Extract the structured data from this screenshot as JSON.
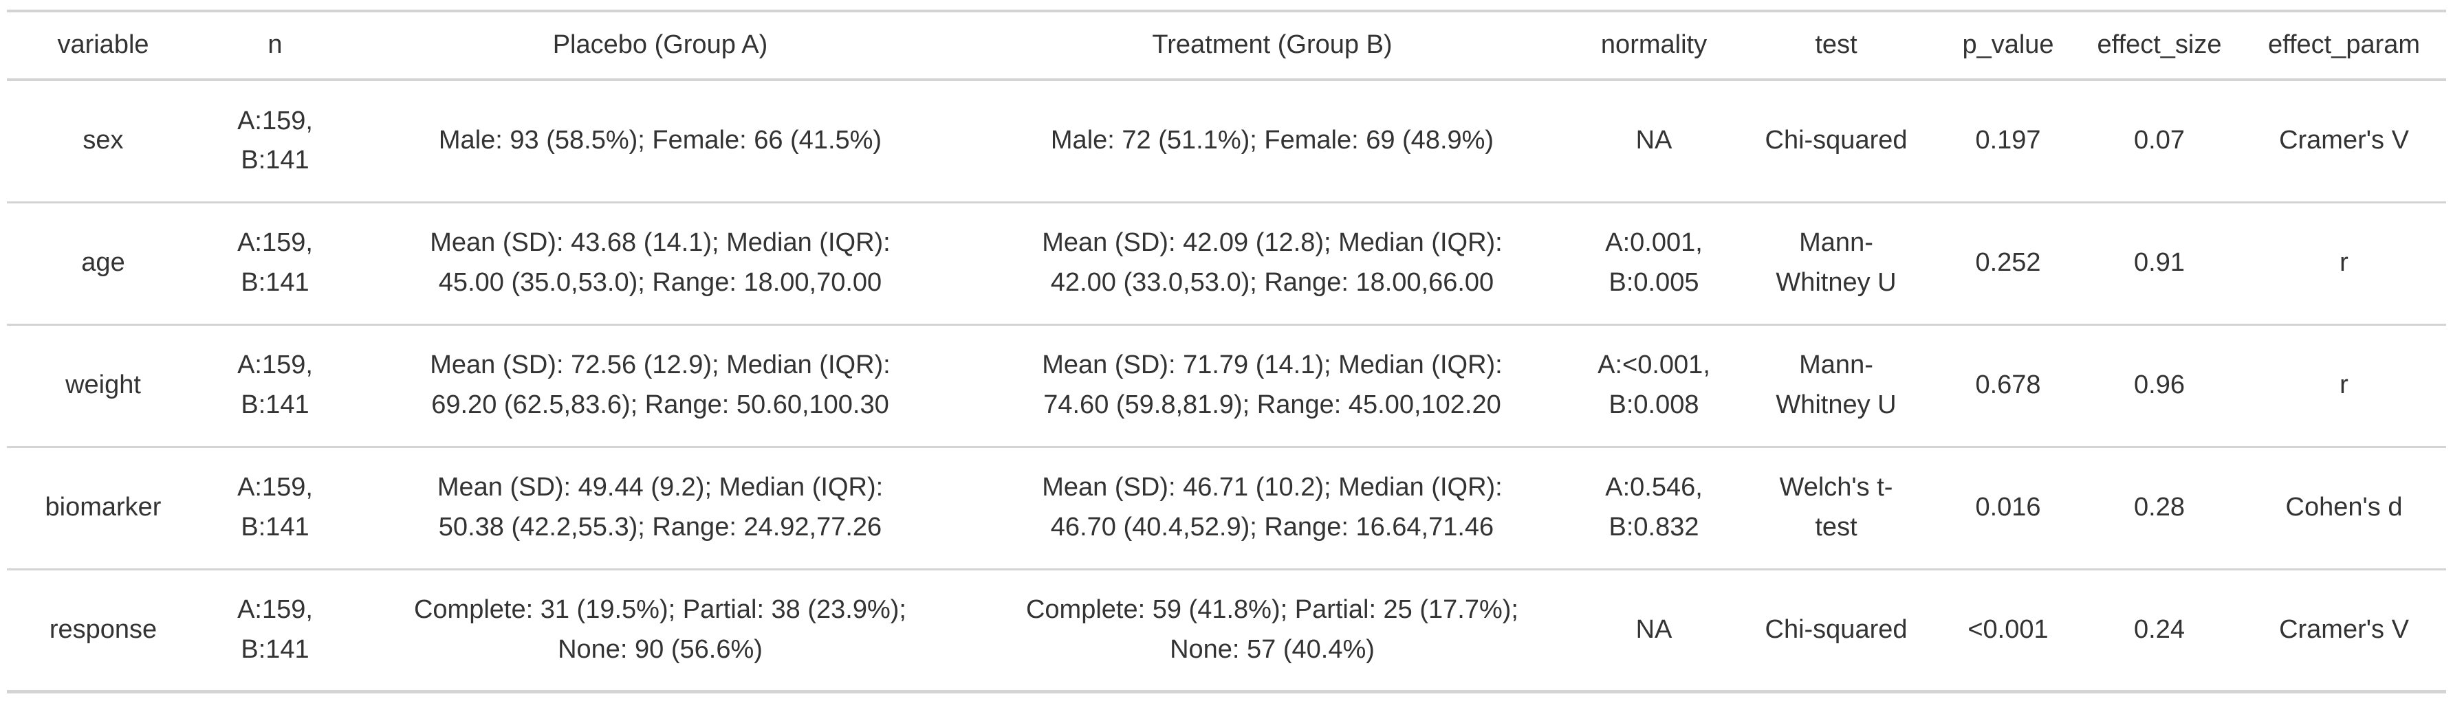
{
  "style": {
    "text_color": "#333333",
    "border_color": "#d4d4d4",
    "background_color": "#ffffff"
  },
  "chart_data": {
    "type": "table",
    "title": "",
    "columns": [
      {
        "key": "variable",
        "label": "variable"
      },
      {
        "key": "n",
        "label": "n"
      },
      {
        "key": "placebo",
        "label": "Placebo (Group A)"
      },
      {
        "key": "treatment",
        "label": "Treatment (Group B)"
      },
      {
        "key": "normality",
        "label": "normality"
      },
      {
        "key": "test",
        "label": "test"
      },
      {
        "key": "p_value",
        "label": "p_value"
      },
      {
        "key": "effect_size",
        "label": "effect_size"
      },
      {
        "key": "effect_param",
        "label": "effect_param"
      }
    ],
    "rows": [
      {
        "variable": "sex",
        "n": "A:159,\nB:141",
        "placebo": "Male: 93 (58.5%); Female: 66 (41.5%)",
        "treatment": "Male: 72 (51.1%); Female: 69 (48.9%)",
        "normality": "NA",
        "test": "Chi-squared",
        "p_value": "0.197",
        "effect_size": "0.07",
        "effect_param": "Cramer's V"
      },
      {
        "variable": "age",
        "n": "A:159,\nB:141",
        "placebo": "Mean (SD): 43.68 (14.1); Median (IQR):\n45.00 (35.0,53.0); Range: 18.00,70.00",
        "treatment": "Mean (SD): 42.09 (12.8); Median (IQR):\n42.00 (33.0,53.0); Range: 18.00,66.00",
        "normality": "A:0.001,\nB:0.005",
        "test": "Mann-\nWhitney U",
        "p_value": "0.252",
        "effect_size": "0.91",
        "effect_param": "r"
      },
      {
        "variable": "weight",
        "n": "A:159,\nB:141",
        "placebo": "Mean (SD): 72.56 (12.9); Median (IQR):\n69.20 (62.5,83.6); Range: 50.60,100.30",
        "treatment": "Mean (SD): 71.79 (14.1); Median (IQR):\n74.60 (59.8,81.9); Range: 45.00,102.20",
        "normality": "A:<0.001,\nB:0.008",
        "test": "Mann-\nWhitney U",
        "p_value": "0.678",
        "effect_size": "0.96",
        "effect_param": "r"
      },
      {
        "variable": "biomarker",
        "n": "A:159,\nB:141",
        "placebo": "Mean (SD): 49.44 (9.2); Median (IQR):\n50.38 (42.2,55.3); Range: 24.92,77.26",
        "treatment": "Mean (SD): 46.71 (10.2); Median (IQR):\n46.70 (40.4,52.9); Range: 16.64,71.46",
        "normality": "A:0.546,\nB:0.832",
        "test": "Welch's t-\ntest",
        "p_value": "0.016",
        "effect_size": "0.28",
        "effect_param": "Cohen's d"
      },
      {
        "variable": "response",
        "n": "A:159,\nB:141",
        "placebo": "Complete: 31 (19.5%); Partial: 38 (23.9%);\nNone: 90 (56.6%)",
        "treatment": "Complete: 59 (41.8%); Partial: 25 (17.7%);\nNone: 57 (40.4%)",
        "normality": "NA",
        "test": "Chi-squared",
        "p_value": "<0.001",
        "effect_size": "0.24",
        "effect_param": "Cramer's V"
      }
    ]
  }
}
